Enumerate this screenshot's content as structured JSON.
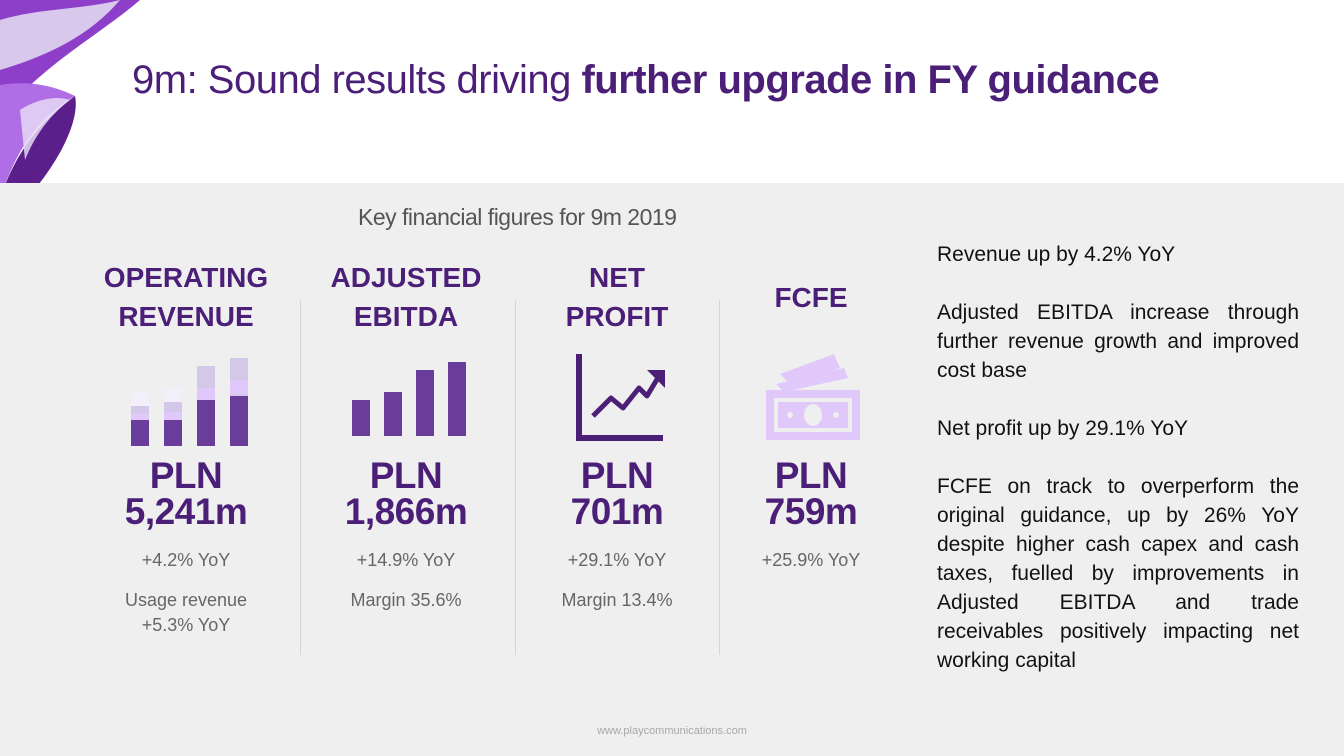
{
  "title": {
    "regular": "9m: Sound results driving ",
    "bold": "further upgrade in FY guidance"
  },
  "subtitle": "Key financial figures for 9m 2019",
  "kpis": [
    {
      "heading": [
        "OPERATING",
        "REVENUE"
      ],
      "value": [
        "PLN",
        "5,241m"
      ],
      "growth": "+4.2% YoY",
      "note": [
        "Usage revenue",
        "+5.3% YoY"
      ],
      "icon": "stacked-bar-chart-icon"
    },
    {
      "heading": [
        "ADJUSTED",
        "EBITDA"
      ],
      "value": [
        "PLN",
        "1,866m"
      ],
      "growth": "+14.9% YoY",
      "note": [
        "Margin 35.6%"
      ],
      "icon": "bar-chart-icon"
    },
    {
      "heading": [
        "NET",
        "PROFIT"
      ],
      "value": [
        "PLN",
        "701m"
      ],
      "growth": "+29.1% YoY",
      "note": [
        "Margin 13.4%"
      ],
      "icon": "trend-up-chart-icon"
    },
    {
      "heading": [
        "FCFE"
      ],
      "value": [
        "PLN",
        "759m"
      ],
      "growth": "+25.9% YoY",
      "note": [],
      "icon": "banknotes-icon"
    }
  ],
  "bullets": [
    "Revenue up by 4.2% YoY",
    "Adjusted EBITDA increase through further revenue growth and improved cost base",
    "Net profit up by 29.1% YoY",
    "FCFE on track to overperform the original guidance, up by 26% YoY despite higher cash capex and cash taxes, fuelled by improvements in Adjusted EBITDA and trade receivables positively impacting net working capital"
  ],
  "footer": "www.playcommunications.com",
  "colors": {
    "brand_purple": "#4b1f78",
    "icon_purple": "#6a3d9a",
    "icon_lilac": "#e0c8fa",
    "content_bg": "#efefef"
  }
}
